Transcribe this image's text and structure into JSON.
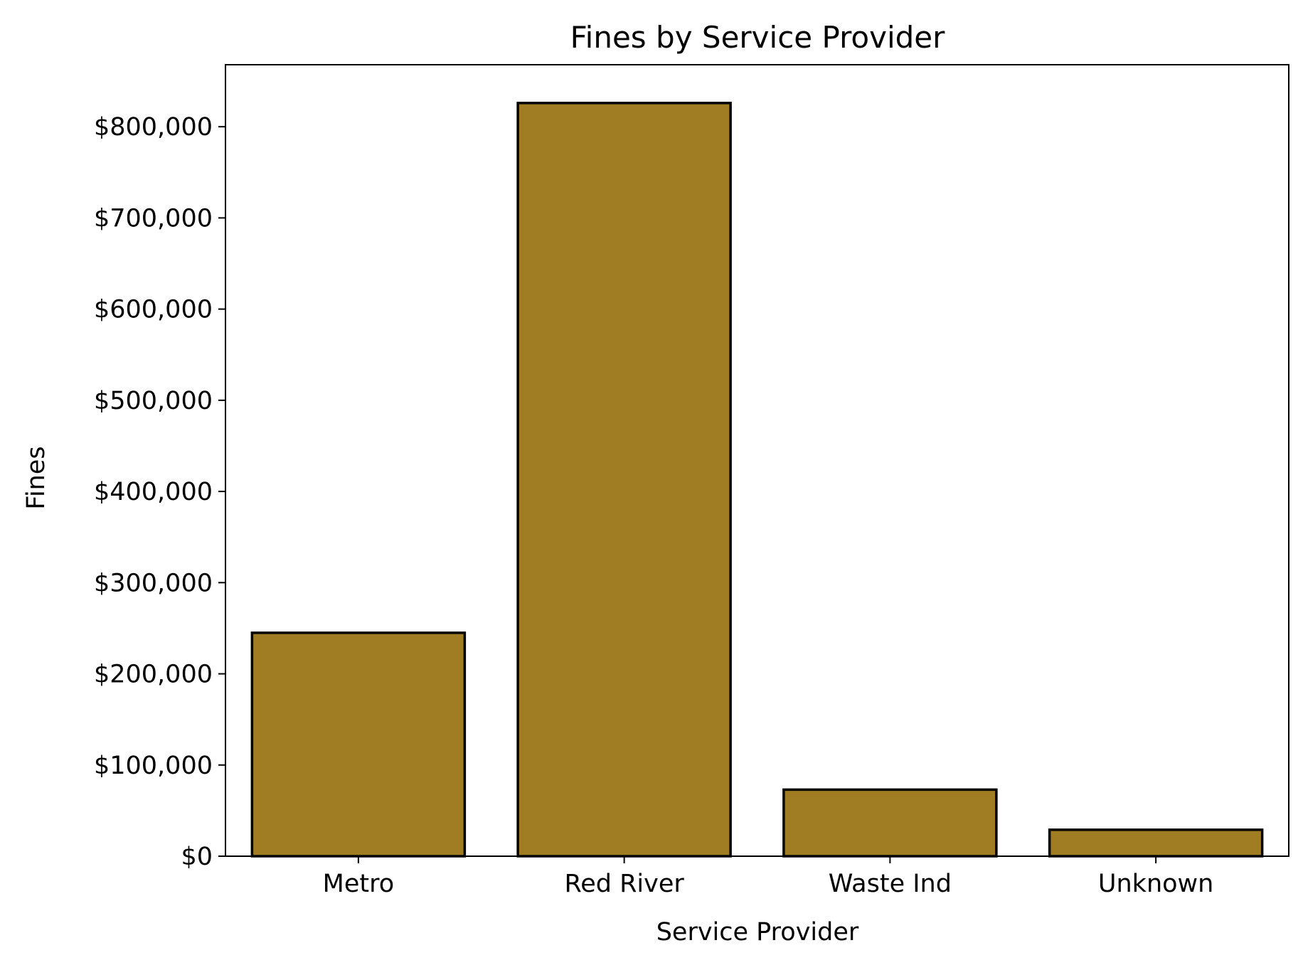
{
  "chart_data": {
    "type": "bar",
    "title": "Fines by Service Provider",
    "xlabel": "Service Provider",
    "ylabel": "Fines",
    "categories": [
      "Metro",
      "Red River",
      "Waste Ind",
      "Unknown"
    ],
    "values": [
      245000,
      826000,
      73000,
      29000
    ],
    "ylim": [
      0,
      868000
    ],
    "yticks": [
      0,
      100000,
      200000,
      300000,
      400000,
      500000,
      600000,
      700000,
      800000
    ],
    "ytick_labels": [
      "$0",
      "$100,000",
      "$200,000",
      "$300,000",
      "$400,000",
      "$500,000",
      "$600,000",
      "$700,000",
      "$800,000"
    ],
    "bar_color": "#a07d22",
    "bar_edge_color": "#000000",
    "grid": false,
    "legend": "none"
  }
}
